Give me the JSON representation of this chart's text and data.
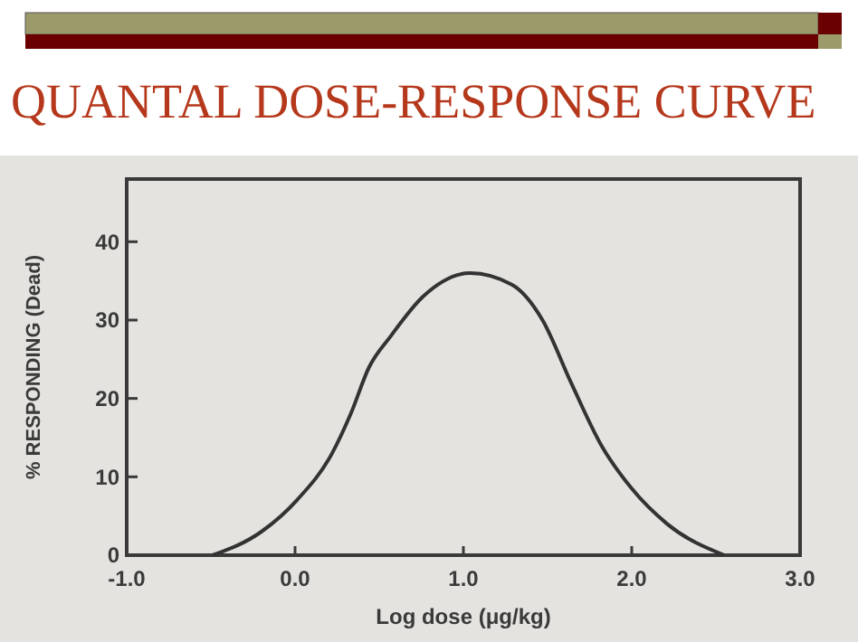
{
  "chart_data": {
    "type": "line",
    "title": "QUANTAL DOSE-RESPONSE CURVE",
    "xlabel": "Log dose (μg/kg)",
    "ylabel": "% RESPONDING (Dead)",
    "x": [
      -0.49,
      -0.2,
      0.01,
      0.22,
      0.33,
      0.44,
      0.57,
      0.76,
      1.04,
      1.29,
      1.47,
      1.64,
      1.82,
      2.0,
      2.21,
      2.55
    ],
    "series": [
      {
        "color": "#333333",
        "values": [
          0,
          3,
          7,
          13,
          18,
          24,
          28,
          33,
          36,
          34.5,
          30,
          22,
          14,
          8.5,
          4,
          0
        ]
      }
    ],
    "xlim": [
      -1,
      3
    ],
    "xticks": [
      {
        "value": -1,
        "label": "-1.0"
      },
      {
        "value": 0,
        "label": "0.0"
      },
      {
        "value": 1,
        "label": "1.0"
      },
      {
        "value": 2,
        "label": "2.0"
      },
      {
        "value": 3,
        "label": "3.0"
      }
    ],
    "ylim": [
      0,
      48
    ],
    "yticks": [
      0,
      10,
      20,
      30,
      40
    ],
    "grid": false,
    "marker": "none",
    "line_style": "solid"
  }
}
